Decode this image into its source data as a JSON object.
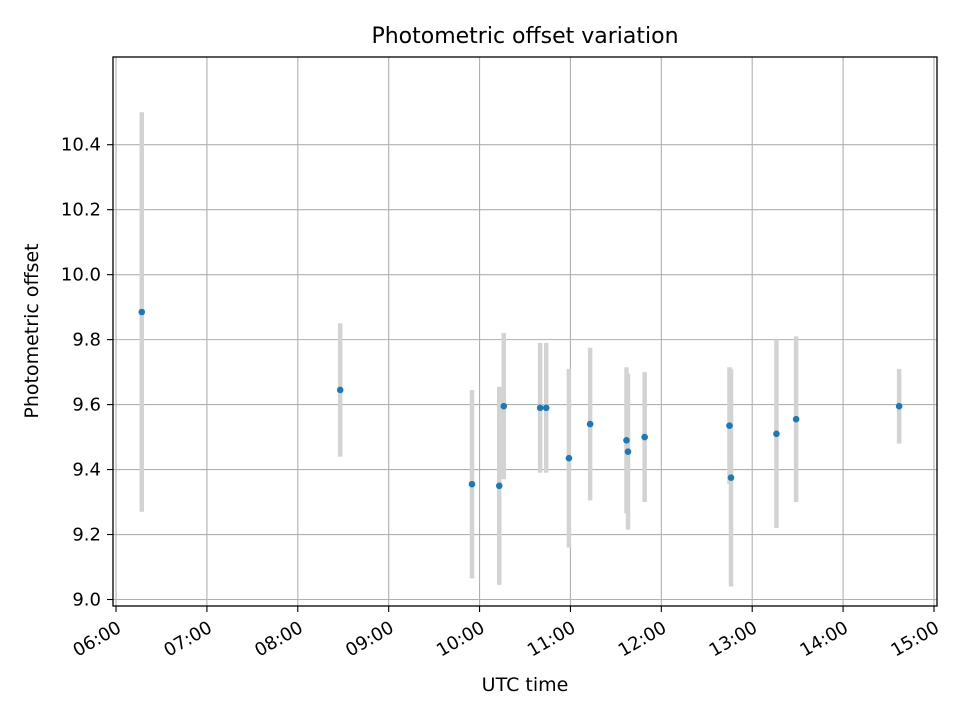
{
  "chart_data": {
    "type": "scatter",
    "title": "Photometric offset variation",
    "xlabel": "UTC time",
    "ylabel": "Photometric offset",
    "x_ticks": [
      "06:00",
      "07:00",
      "08:00",
      "09:00",
      "10:00",
      "11:00",
      "12:00",
      "13:00",
      "14:00",
      "15:00"
    ],
    "y_ticks": [
      "9.0",
      "9.2",
      "9.4",
      "9.6",
      "9.8",
      "10.0",
      "10.2",
      "10.4"
    ],
    "xlim": [
      "05:58",
      "15:02"
    ],
    "ylim": [
      8.98,
      10.67
    ],
    "grid": true,
    "point_color": "#1f77b4",
    "errorbar_color": "#d3d3d3",
    "points": [
      {
        "time": "06:17",
        "y": 9.885,
        "err": 0.615
      },
      {
        "time": "08:28",
        "y": 9.645,
        "err": 0.205
      },
      {
        "time": "09:55",
        "y": 9.355,
        "err": 0.29
      },
      {
        "time": "10:13",
        "y": 9.35,
        "err": 0.305
      },
      {
        "time": "10:16",
        "y": 9.595,
        "err": 0.225
      },
      {
        "time": "10:40",
        "y": 9.59,
        "err": 0.2
      },
      {
        "time": "10:44",
        "y": 9.59,
        "err": 0.2
      },
      {
        "time": "10:59",
        "y": 9.435,
        "err": 0.275
      },
      {
        "time": "11:13",
        "y": 9.54,
        "err": 0.235
      },
      {
        "time": "11:37",
        "y": 9.49,
        "err": 0.225
      },
      {
        "time": "11:38",
        "y": 9.455,
        "err": 0.24
      },
      {
        "time": "11:49",
        "y": 9.5,
        "err": 0.2
      },
      {
        "time": "12:45",
        "y": 9.535,
        "err": 0.18
      },
      {
        "time": "12:46",
        "y": 9.375,
        "err": 0.335
      },
      {
        "time": "13:16",
        "y": 9.51,
        "err": 0.29
      },
      {
        "time": "13:29",
        "y": 9.555,
        "err": 0.255
      },
      {
        "time": "14:37",
        "y": 9.595,
        "err": 0.115
      }
    ]
  }
}
